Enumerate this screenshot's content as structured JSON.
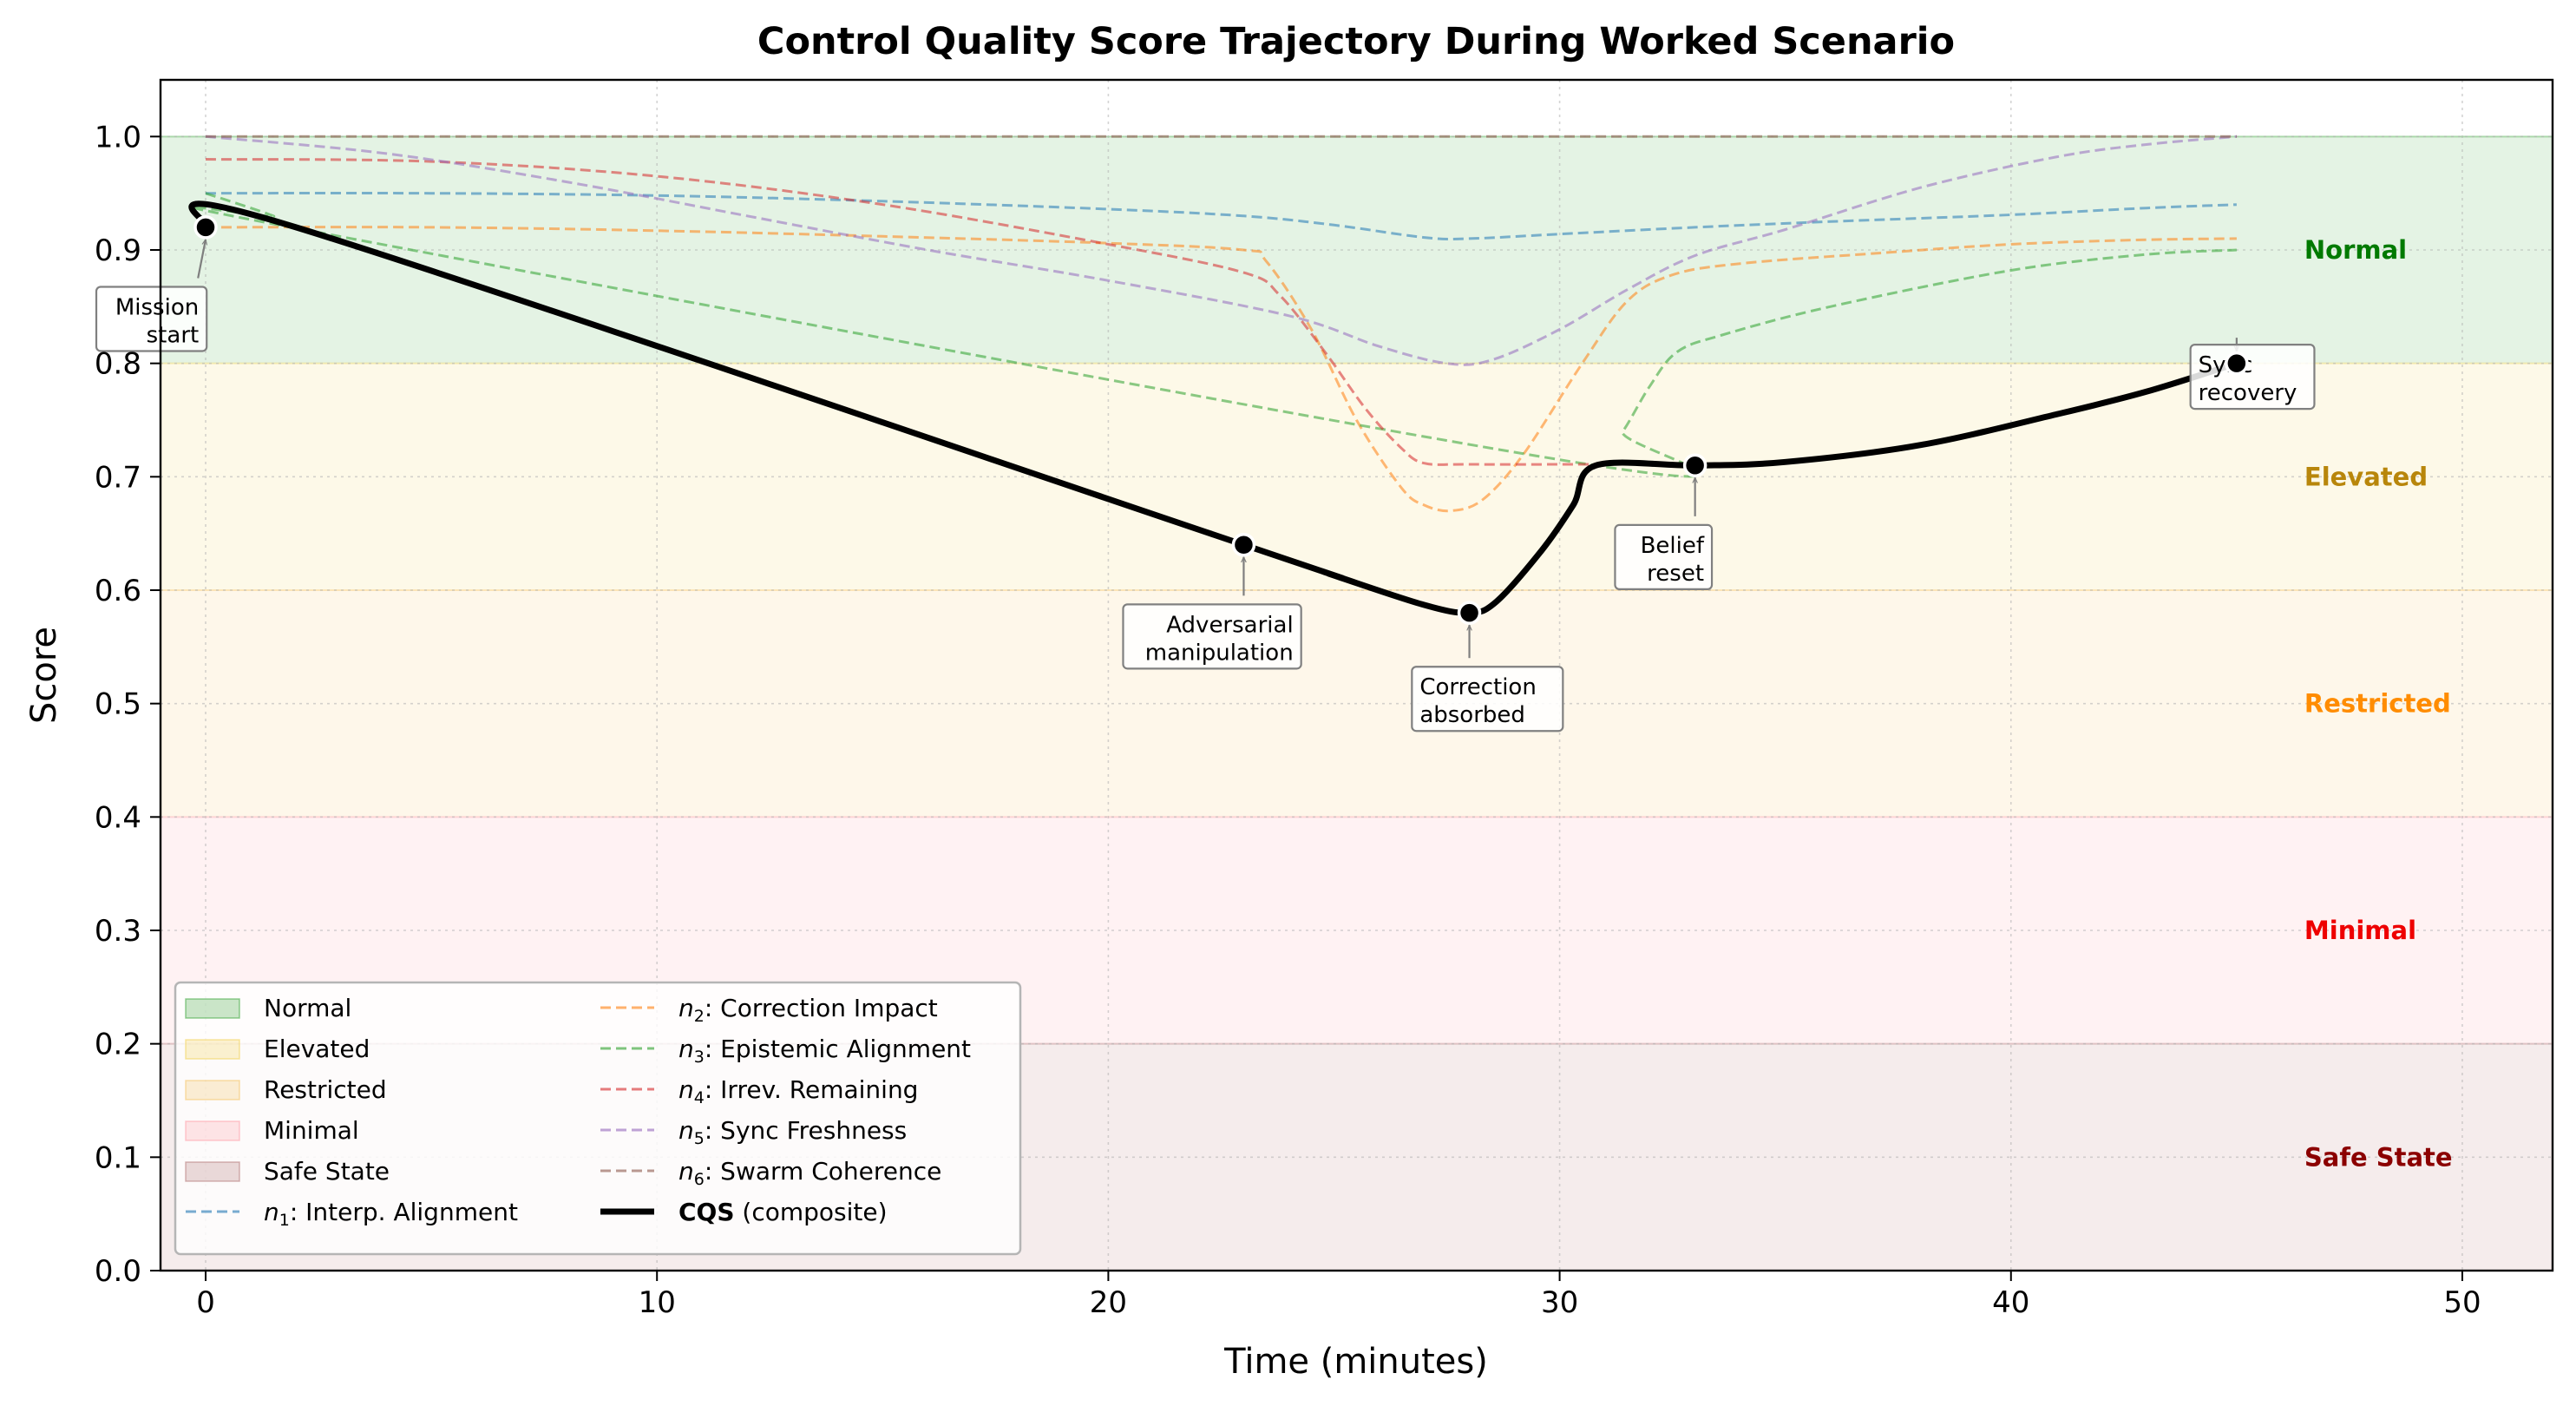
{
  "chart_data": {
    "type": "line",
    "title": "Control Quality Score Trajectory During Worked Scenario",
    "xlabel": "Time (minutes)",
    "ylabel": "Score",
    "xlim": [
      -1,
      52
    ],
    "ylim": [
      0,
      1.05
    ],
    "xticks": [
      0,
      10,
      20,
      30,
      40,
      50
    ],
    "yticks": [
      0.0,
      0.1,
      0.2,
      0.3,
      0.4,
      0.5,
      0.6,
      0.7,
      0.8,
      0.9,
      1.0
    ],
    "xtick_labels": [
      "0",
      "10",
      "20",
      "30",
      "40",
      "50"
    ],
    "ytick_labels": [
      "0.0",
      "0.1",
      "0.2",
      "0.3",
      "0.4",
      "0.5",
      "0.6",
      "0.7",
      "0.8",
      "0.9",
      "1.0"
    ],
    "grid": true,
    "bands": [
      {
        "name": "Normal",
        "label": "Normal",
        "ymin": 0.8,
        "ymax": 1.0,
        "color": "#2ca02c",
        "text_color": "#007a00",
        "label_y": 0.9
      },
      {
        "name": "Elevated",
        "label": "Elevated",
        "ymin": 0.6,
        "ymax": 0.8,
        "color": "#f2d04a",
        "text_color": "#b8860b",
        "label_y": 0.7
      },
      {
        "name": "Restricted",
        "label": "Restricted",
        "ymin": 0.4,
        "ymax": 0.6,
        "color": "#f5c15c",
        "text_color": "#ff8c00",
        "label_y": 0.5
      },
      {
        "name": "Minimal",
        "label": "Minimal",
        "ymin": 0.2,
        "ymax": 0.4,
        "color": "#ff9aa5",
        "text_color": "#ee0000",
        "label_y": 0.3
      },
      {
        "name": "Safe State",
        "label": "Safe State",
        "ymin": 0.0,
        "ymax": 0.2,
        "color": "#b07070",
        "text_color": "#8b0000",
        "label_y": 0.1
      }
    ],
    "band_label_x": 46.5,
    "series": [
      {
        "id": "n1",
        "sym": "n",
        "sub": "1",
        "name": ": Interp. Alignment",
        "color": "#1f77b4",
        "points": [
          [
            0,
            0.95
          ],
          [
            5,
            0.95
          ],
          [
            10,
            0.948
          ],
          [
            15,
            0.943
          ],
          [
            20,
            0.936
          ],
          [
            23,
            0.93
          ],
          [
            25,
            0.922
          ],
          [
            27,
            0.911
          ],
          [
            28,
            0.91
          ],
          [
            30,
            0.914
          ],
          [
            33,
            0.92
          ],
          [
            36,
            0.925
          ],
          [
            40,
            0.931
          ],
          [
            43,
            0.937
          ],
          [
            45,
            0.94
          ]
        ]
      },
      {
        "id": "n2",
        "sym": "n",
        "sub": "2",
        "name": ": Correction Impact",
        "color": "#ff7f0e",
        "points": [
          [
            0,
            0.92
          ],
          [
            5,
            0.92
          ],
          [
            10,
            0.917
          ],
          [
            15,
            0.912
          ],
          [
            20,
            0.906
          ],
          [
            23,
            0.9
          ],
          [
            23.5,
            0.89
          ],
          [
            24.5,
            0.83
          ],
          [
            25.5,
            0.75
          ],
          [
            26.5,
            0.69
          ],
          [
            27,
            0.675
          ],
          [
            27.6,
            0.67
          ],
          [
            28.3,
            0.68
          ],
          [
            29.2,
            0.72
          ],
          [
            30.5,
            0.8
          ],
          [
            31.5,
            0.855
          ],
          [
            32.5,
            0.878
          ],
          [
            34,
            0.888
          ],
          [
            37,
            0.897
          ],
          [
            40,
            0.905
          ],
          [
            43,
            0.909
          ],
          [
            45,
            0.91
          ]
        ]
      },
      {
        "id": "n3",
        "sym": "n",
        "sub": "3",
        "name": ": Epistemic Alignment",
        "color": "#2ca02c",
        "points": [
          [
            0,
            0.95
          ],
          [
            1.5,
            0.93
          ],
          [
            1.9,
            0.92
          ],
          [
            30.8,
            0.71
          ],
          [
            31.4,
            0.74
          ],
          [
            32.0,
            0.78
          ],
          [
            32.6,
            0.81
          ],
          [
            33.6,
            0.825
          ],
          [
            36,
            0.85
          ],
          [
            40,
            0.882
          ],
          [
            43,
            0.896
          ],
          [
            45,
            0.9
          ]
        ]
      },
      {
        "id": "n4",
        "sym": "n",
        "sub": "4",
        "name": ": Irrev. Remaining",
        "color": "#d62728",
        "points": [
          [
            0,
            0.98
          ],
          [
            5,
            0.978
          ],
          [
            10,
            0.965
          ],
          [
            15,
            0.94
          ],
          [
            20,
            0.905
          ],
          [
            23,
            0.88
          ],
          [
            23.8,
            0.86
          ],
          [
            24.8,
            0.81
          ],
          [
            25.7,
            0.76
          ],
          [
            26.5,
            0.725
          ],
          [
            27,
            0.712
          ],
          [
            28,
            0.711
          ],
          [
            30.8,
            0.711
          ]
        ]
      },
      {
        "id": "n5",
        "sym": "n",
        "sub": "5",
        "name": ": Sync Freshness",
        "color": "#9467bd",
        "points": [
          [
            0,
            1.0
          ],
          [
            4,
            0.985
          ],
          [
            8,
            0.96
          ],
          [
            12,
            0.93
          ],
          [
            16,
            0.9
          ],
          [
            20,
            0.873
          ],
          [
            24,
            0.842
          ],
          [
            26,
            0.815
          ],
          [
            27.5,
            0.8
          ],
          [
            28.5,
            0.803
          ],
          [
            30,
            0.83
          ],
          [
            31.5,
            0.865
          ],
          [
            33,
            0.895
          ],
          [
            35,
            0.918
          ],
          [
            38,
            0.955
          ],
          [
            41,
            0.982
          ],
          [
            43,
            0.993
          ],
          [
            45,
            1.0
          ]
        ]
      },
      {
        "id": "n6",
        "sym": "n",
        "sub": "6",
        "name": ": Swarm Coherence",
        "color": "#8c564b",
        "points": [
          [
            0,
            1.0
          ],
          [
            45,
            1.0
          ]
        ]
      }
    ],
    "cqs": {
      "label_bold": "CQS",
      "label_rest": " (composite)",
      "color": "#000000",
      "points": [
        [
          0,
          0.92
        ],
        [
          2,
          0.92
        ],
        [
          23,
          0.64
        ],
        [
          25,
          0.613
        ],
        [
          27,
          0.587
        ],
        [
          28,
          0.58
        ],
        [
          28.6,
          0.59
        ],
        [
          29.6,
          0.635
        ],
        [
          30.3,
          0.675
        ],
        [
          30.8,
          0.71
        ],
        [
          33,
          0.71
        ],
        [
          35,
          0.713
        ],
        [
          38,
          0.728
        ],
        [
          41,
          0.755
        ],
        [
          43,
          0.775
        ],
        [
          45,
          0.8
        ]
      ]
    },
    "events": [
      {
        "id": "mission-start",
        "x": 0,
        "y": 0.92,
        "lines": [
          "Mission",
          "start"
        ],
        "tx": -0.15,
        "ty": 0.843,
        "anchor": "end"
      },
      {
        "id": "adversarial",
        "x": 23,
        "y": 0.64,
        "lines": [
          "Adversarial",
          "manipulation"
        ],
        "tx": 24.1,
        "ty": 0.563,
        "anchor": "end"
      },
      {
        "id": "correction",
        "x": 28,
        "y": 0.58,
        "lines": [
          "Correction",
          "absorbed"
        ],
        "tx": 26.9,
        "ty": 0.508,
        "anchor": "start"
      },
      {
        "id": "belief-reset",
        "x": 33,
        "y": 0.71,
        "lines": [
          "Belief",
          "reset"
        ],
        "tx": 33.2,
        "ty": 0.633,
        "anchor": "end"
      },
      {
        "id": "sync-recovery",
        "x": 45,
        "y": 0.8,
        "lines": [
          "Sync",
          "recovery"
        ],
        "tx": 44.15,
        "ty": 0.792,
        "anchor": "start"
      }
    ]
  }
}
